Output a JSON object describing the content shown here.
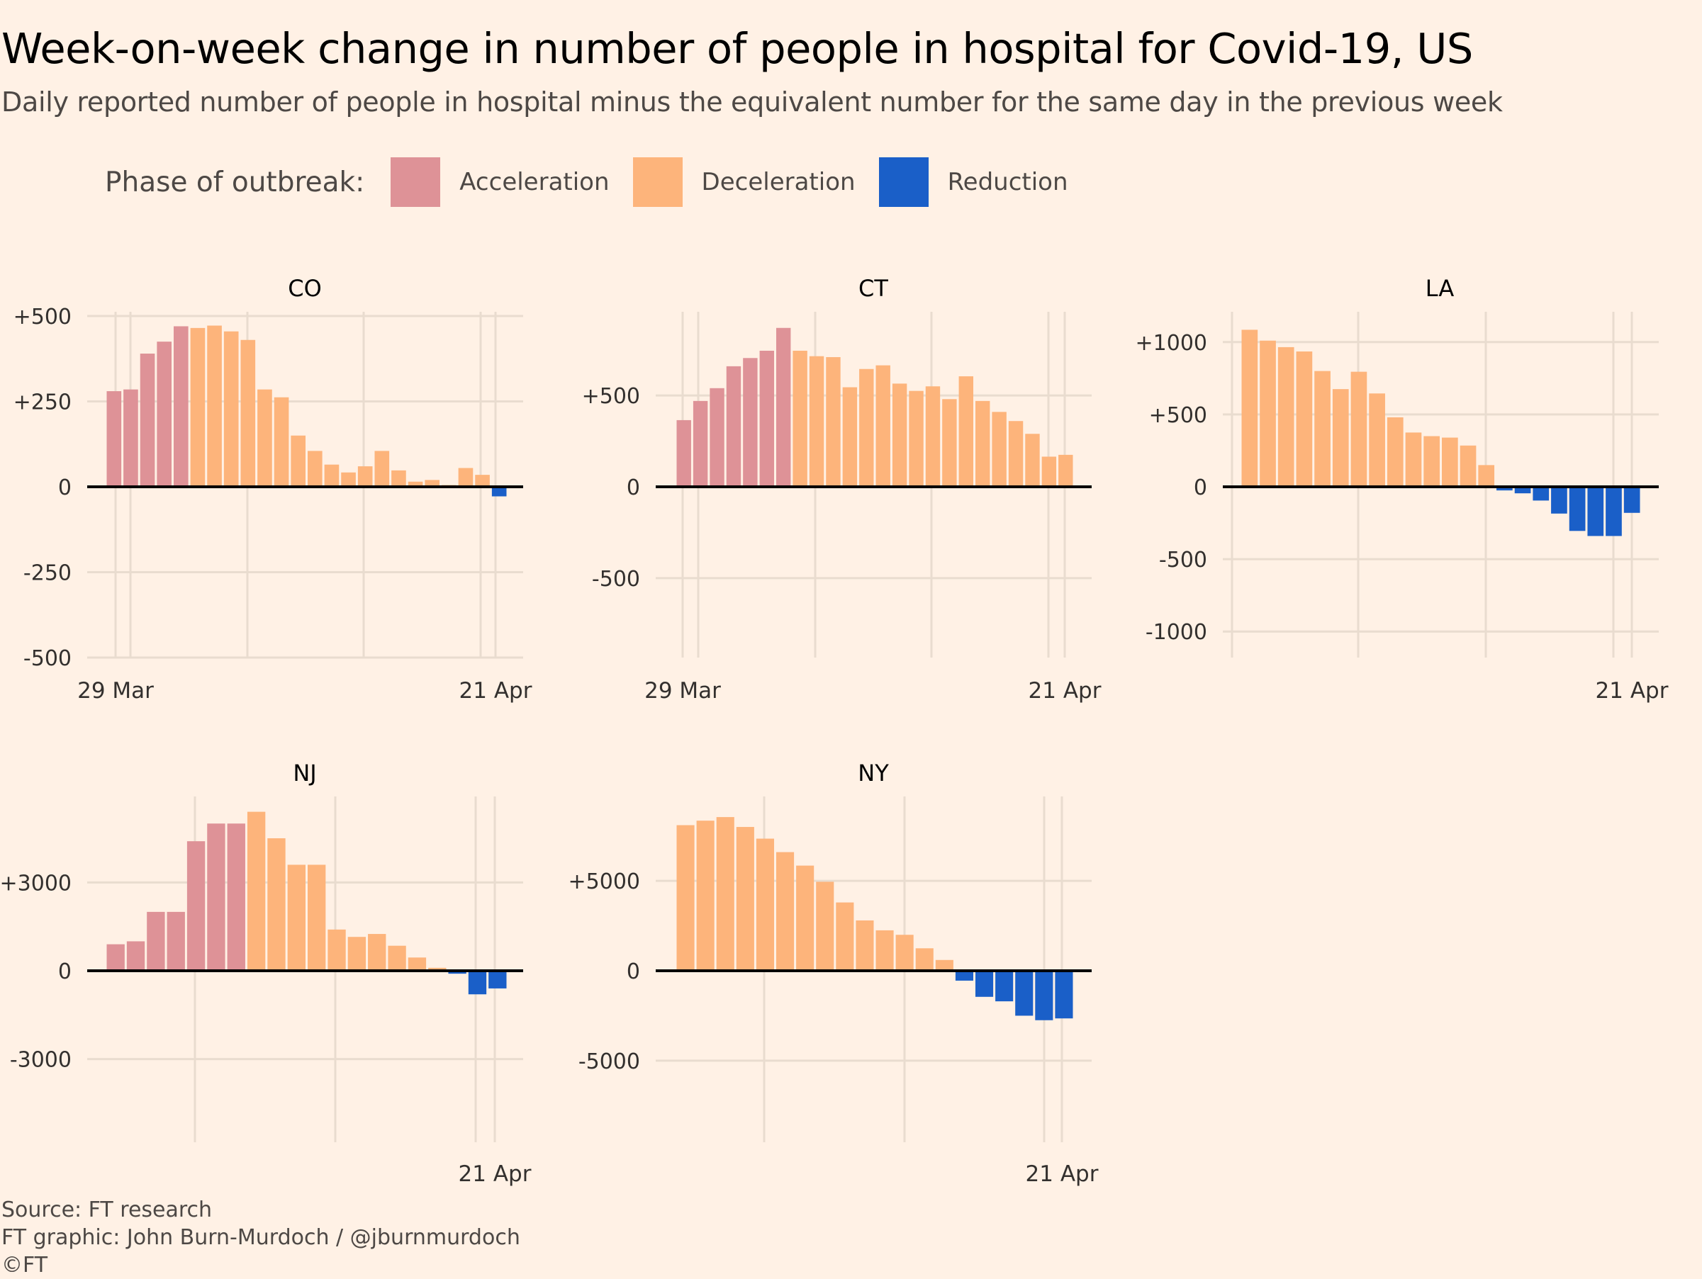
{
  "title": "Week-on-week change in number of people in hospital for Covid-19, US",
  "subtitle": "Daily reported number of people in hospital minus the equivalent number for the same day in the previous week",
  "legend": {
    "title": "Phase of outbreak:",
    "items": [
      {
        "label": "Acceleration",
        "color": "#de9297"
      },
      {
        "label": "Deceleration",
        "color": "#fdb47b"
      },
      {
        "label": "Reduction",
        "color": "#1a5fc8"
      }
    ]
  },
  "footer": {
    "source": "Source: FT research",
    "graphic": "FT graphic: John Burn-Murdoch / @jburnmurdoch",
    "copyright": "©FT"
  },
  "colors": {
    "background": "#fff1e5",
    "gridline": "#e9dccf",
    "zero_line": "#000000",
    "tick_text": "#33302e"
  },
  "chart_data": [
    {
      "type": "bar",
      "panel": "CO",
      "x_start": "2020-03-29",
      "x_end": "2020-04-22",
      "x_tick_labels": [
        "29 Mar",
        "21 Apr"
      ],
      "y_ticks": [
        500,
        250,
        0,
        -250,
        -500
      ],
      "y_tick_labels": [
        "+500",
        "+250",
        "0",
        "-250",
        "-500"
      ],
      "ylim": [
        -500,
        500
      ],
      "values": [
        280,
        285,
        390,
        425,
        470,
        465,
        472,
        455,
        430,
        285,
        262,
        150,
        105,
        65,
        42,
        60,
        105,
        48,
        15,
        20,
        5,
        55,
        35,
        -28
      ],
      "phases": [
        "Acceleration",
        "Acceleration",
        "Acceleration",
        "Acceleration",
        "Acceleration",
        "Deceleration",
        "Deceleration",
        "Deceleration",
        "Deceleration",
        "Deceleration",
        "Deceleration",
        "Deceleration",
        "Deceleration",
        "Deceleration",
        "Deceleration",
        "Deceleration",
        "Deceleration",
        "Deceleration",
        "Deceleration",
        "Deceleration",
        "Deceleration",
        "Deceleration",
        "Deceleration",
        "Reduction"
      ]
    },
    {
      "type": "bar",
      "panel": "CT",
      "x_start": "2020-03-29",
      "x_end": "2020-04-21",
      "x_tick_labels": [
        "29 Mar",
        "21 Apr"
      ],
      "y_ticks": [
        500,
        0,
        -500
      ],
      "y_tick_labels": [
        "+500",
        "0",
        "-500"
      ],
      "ylim": [
        -920,
        950
      ],
      "values": [
        365,
        470,
        540,
        660,
        705,
        745,
        870,
        745,
        715,
        710,
        545,
        645,
        665,
        565,
        525,
        550,
        480,
        605,
        470,
        410,
        360,
        290,
        165,
        175
      ],
      "phases": [
        "Acceleration",
        "Acceleration",
        "Acceleration",
        "Acceleration",
        "Acceleration",
        "Acceleration",
        "Acceleration",
        "Deceleration",
        "Deceleration",
        "Deceleration",
        "Deceleration",
        "Deceleration",
        "Deceleration",
        "Deceleration",
        "Deceleration",
        "Deceleration",
        "Deceleration",
        "Deceleration",
        "Deceleration",
        "Deceleration",
        "Deceleration",
        "Deceleration",
        "Deceleration",
        "Deceleration"
      ]
    },
    {
      "type": "bar",
      "panel": "LA",
      "x_start": "2020-03-29",
      "x_end": "2020-04-22",
      "x_tick_labels": [
        "21 Apr"
      ],
      "y_ticks": [
        1000,
        500,
        0,
        -500,
        -1000
      ],
      "y_tick_labels": [
        "+1000",
        "+500",
        "0",
        "-500",
        "-1000"
      ],
      "ylim": [
        -1180,
        1180
      ],
      "values": [
        1085,
        1010,
        965,
        935,
        800,
        675,
        795,
        645,
        480,
        375,
        350,
        340,
        285,
        150,
        -25,
        -45,
        -95,
        -185,
        -305,
        -340,
        -340,
        -180
      ],
      "phases": [
        "Deceleration",
        "Deceleration",
        "Deceleration",
        "Deceleration",
        "Deceleration",
        "Deceleration",
        "Deceleration",
        "Deceleration",
        "Deceleration",
        "Deceleration",
        "Deceleration",
        "Deceleration",
        "Deceleration",
        "Deceleration",
        "Reduction",
        "Reduction",
        "Reduction",
        "Reduction",
        "Reduction",
        "Reduction",
        "Reduction",
        "Reduction"
      ]
    },
    {
      "type": "bar",
      "panel": "NJ",
      "x_start": "2020-03-29",
      "x_end": "2020-04-22",
      "x_tick_labels": [
        "21 Apr"
      ],
      "y_ticks": [
        3000,
        0,
        -3000
      ],
      "y_tick_labels": [
        "+3000",
        "0",
        "-3000"
      ],
      "ylim": [
        -5800,
        5800
      ],
      "values": [
        900,
        1000,
        2000,
        2000,
        4400,
        5000,
        5000,
        5400,
        4500,
        3600,
        3600,
        1400,
        1150,
        1250,
        850,
        450,
        100,
        -100,
        -800,
        -600
      ],
      "phases": [
        "Acceleration",
        "Acceleration",
        "Acceleration",
        "Acceleration",
        "Acceleration",
        "Acceleration",
        "Acceleration",
        "Deceleration",
        "Deceleration",
        "Deceleration",
        "Deceleration",
        "Deceleration",
        "Deceleration",
        "Deceleration",
        "Deceleration",
        "Deceleration",
        "Deceleration",
        "Reduction",
        "Reduction",
        "Reduction"
      ]
    },
    {
      "type": "bar",
      "panel": "NY",
      "x_start": "2020-03-29",
      "x_end": "2020-04-21",
      "x_tick_labels": [
        "21 Apr"
      ],
      "y_ticks": [
        5000,
        0,
        -5000
      ],
      "y_tick_labels": [
        "+5000",
        "0",
        "-5000"
      ],
      "ylim": [
        -9500,
        9500
      ],
      "values": [
        8100,
        8350,
        8550,
        8000,
        7350,
        6600,
        5850,
        4950,
        3800,
        2800,
        2250,
        2000,
        1250,
        600,
        -550,
        -1450,
        -1700,
        -2500,
        -2750,
        -2650
      ],
      "phases": [
        "Deceleration",
        "Deceleration",
        "Deceleration",
        "Deceleration",
        "Deceleration",
        "Deceleration",
        "Deceleration",
        "Deceleration",
        "Deceleration",
        "Deceleration",
        "Deceleration",
        "Deceleration",
        "Deceleration",
        "Deceleration",
        "Reduction",
        "Reduction",
        "Reduction",
        "Reduction",
        "Reduction",
        "Reduction"
      ]
    }
  ]
}
